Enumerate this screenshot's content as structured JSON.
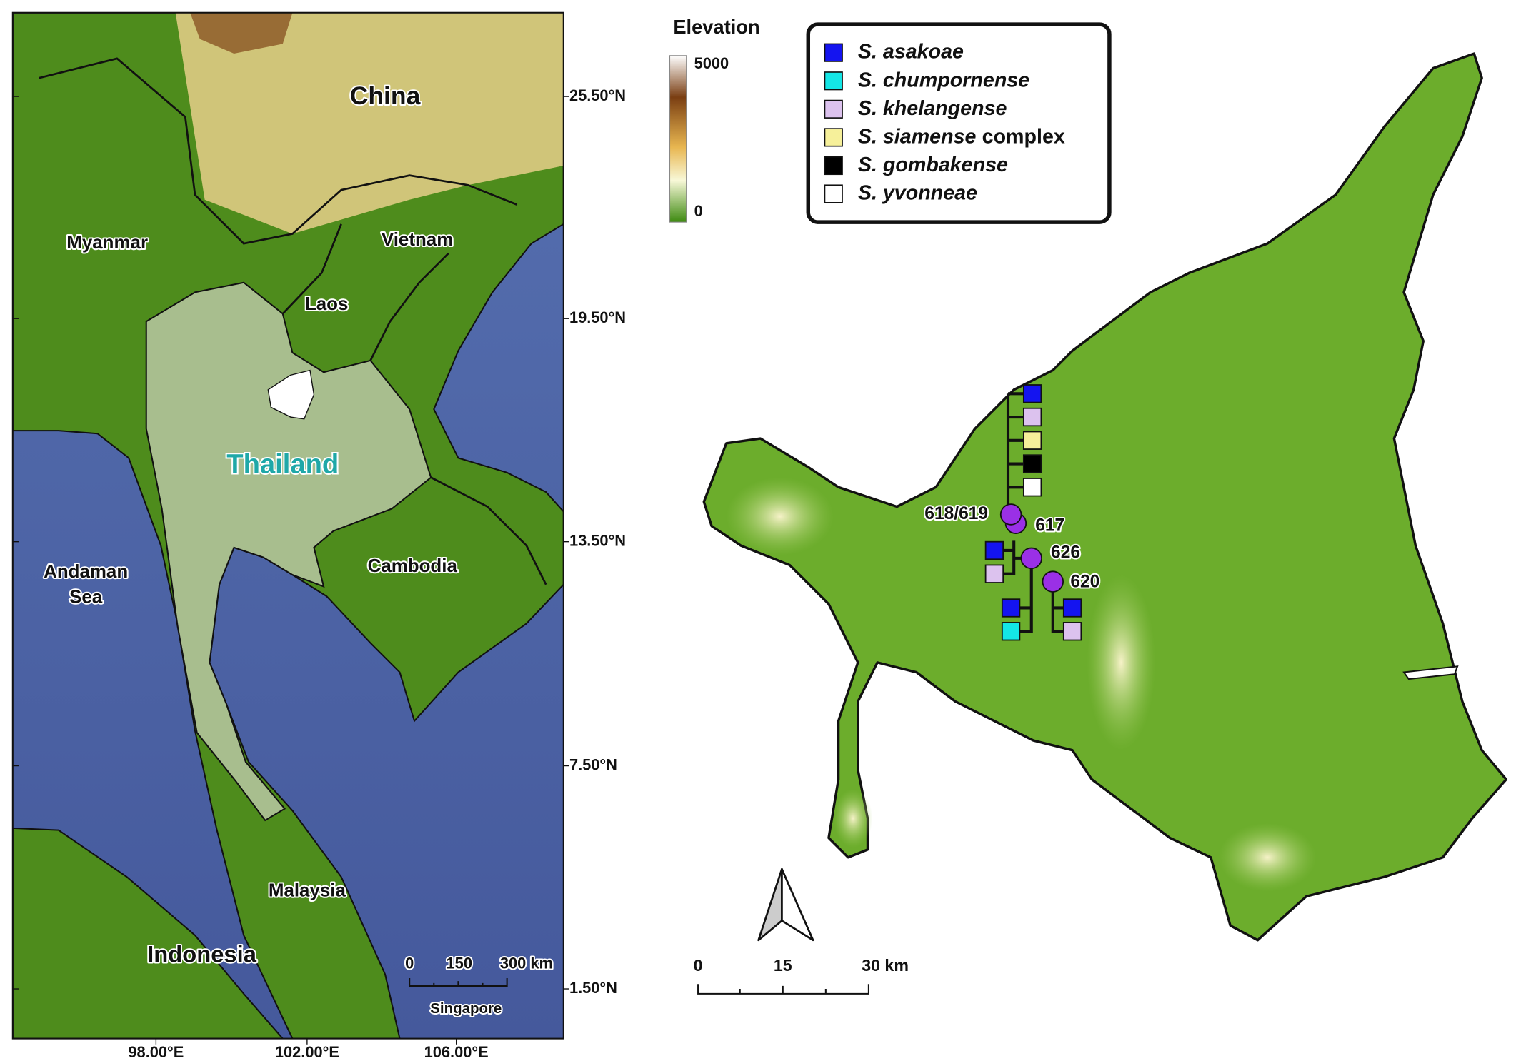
{
  "overview_map": {
    "labels": {
      "china": "China",
      "myanmar": "Myanmar",
      "vietnam": "Vietnam",
      "laos": "Laos",
      "thailand": "Thailand",
      "cambodia": "Cambodia",
      "andaman_sea": [
        "Andaman",
        "Sea"
      ],
      "malaysia": "Malaysia",
      "indonesia": "Indonesia",
      "singapore": "Singapore"
    },
    "latitude_labels": [
      "25.50°N",
      "19.50°N",
      "13.50°N",
      "7.50°N",
      "1.50°N"
    ],
    "longitude_labels": [
      "98.00°E",
      "102.00°E",
      "106.00°E"
    ],
    "scale_bar": [
      "0",
      "150",
      "300 km"
    ]
  },
  "elevation_legend": {
    "title": "Elevation",
    "max_label": "5000",
    "min_label": "0"
  },
  "species_legend": [
    {
      "name": "S. asakoae",
      "color": "#1414f0"
    },
    {
      "name": "S. chumpornense",
      "color": "#14e6e6"
    },
    {
      "name": "S. khelangense",
      "color": "#dcc2ee"
    },
    {
      "name": "S. siamense",
      "suffix": "complex",
      "color": "#f6f09a"
    },
    {
      "name": "S. gombakense",
      "color": "#000000"
    },
    {
      "name": "S. yvonneae",
      "color": "#ffffff"
    }
  ],
  "detail_map": {
    "site_labels": [
      "618/619",
      "617",
      "626",
      "620"
    ],
    "site_color": "#9a30e6",
    "scale_bar": [
      "0",
      "15",
      "30 km"
    ]
  }
}
